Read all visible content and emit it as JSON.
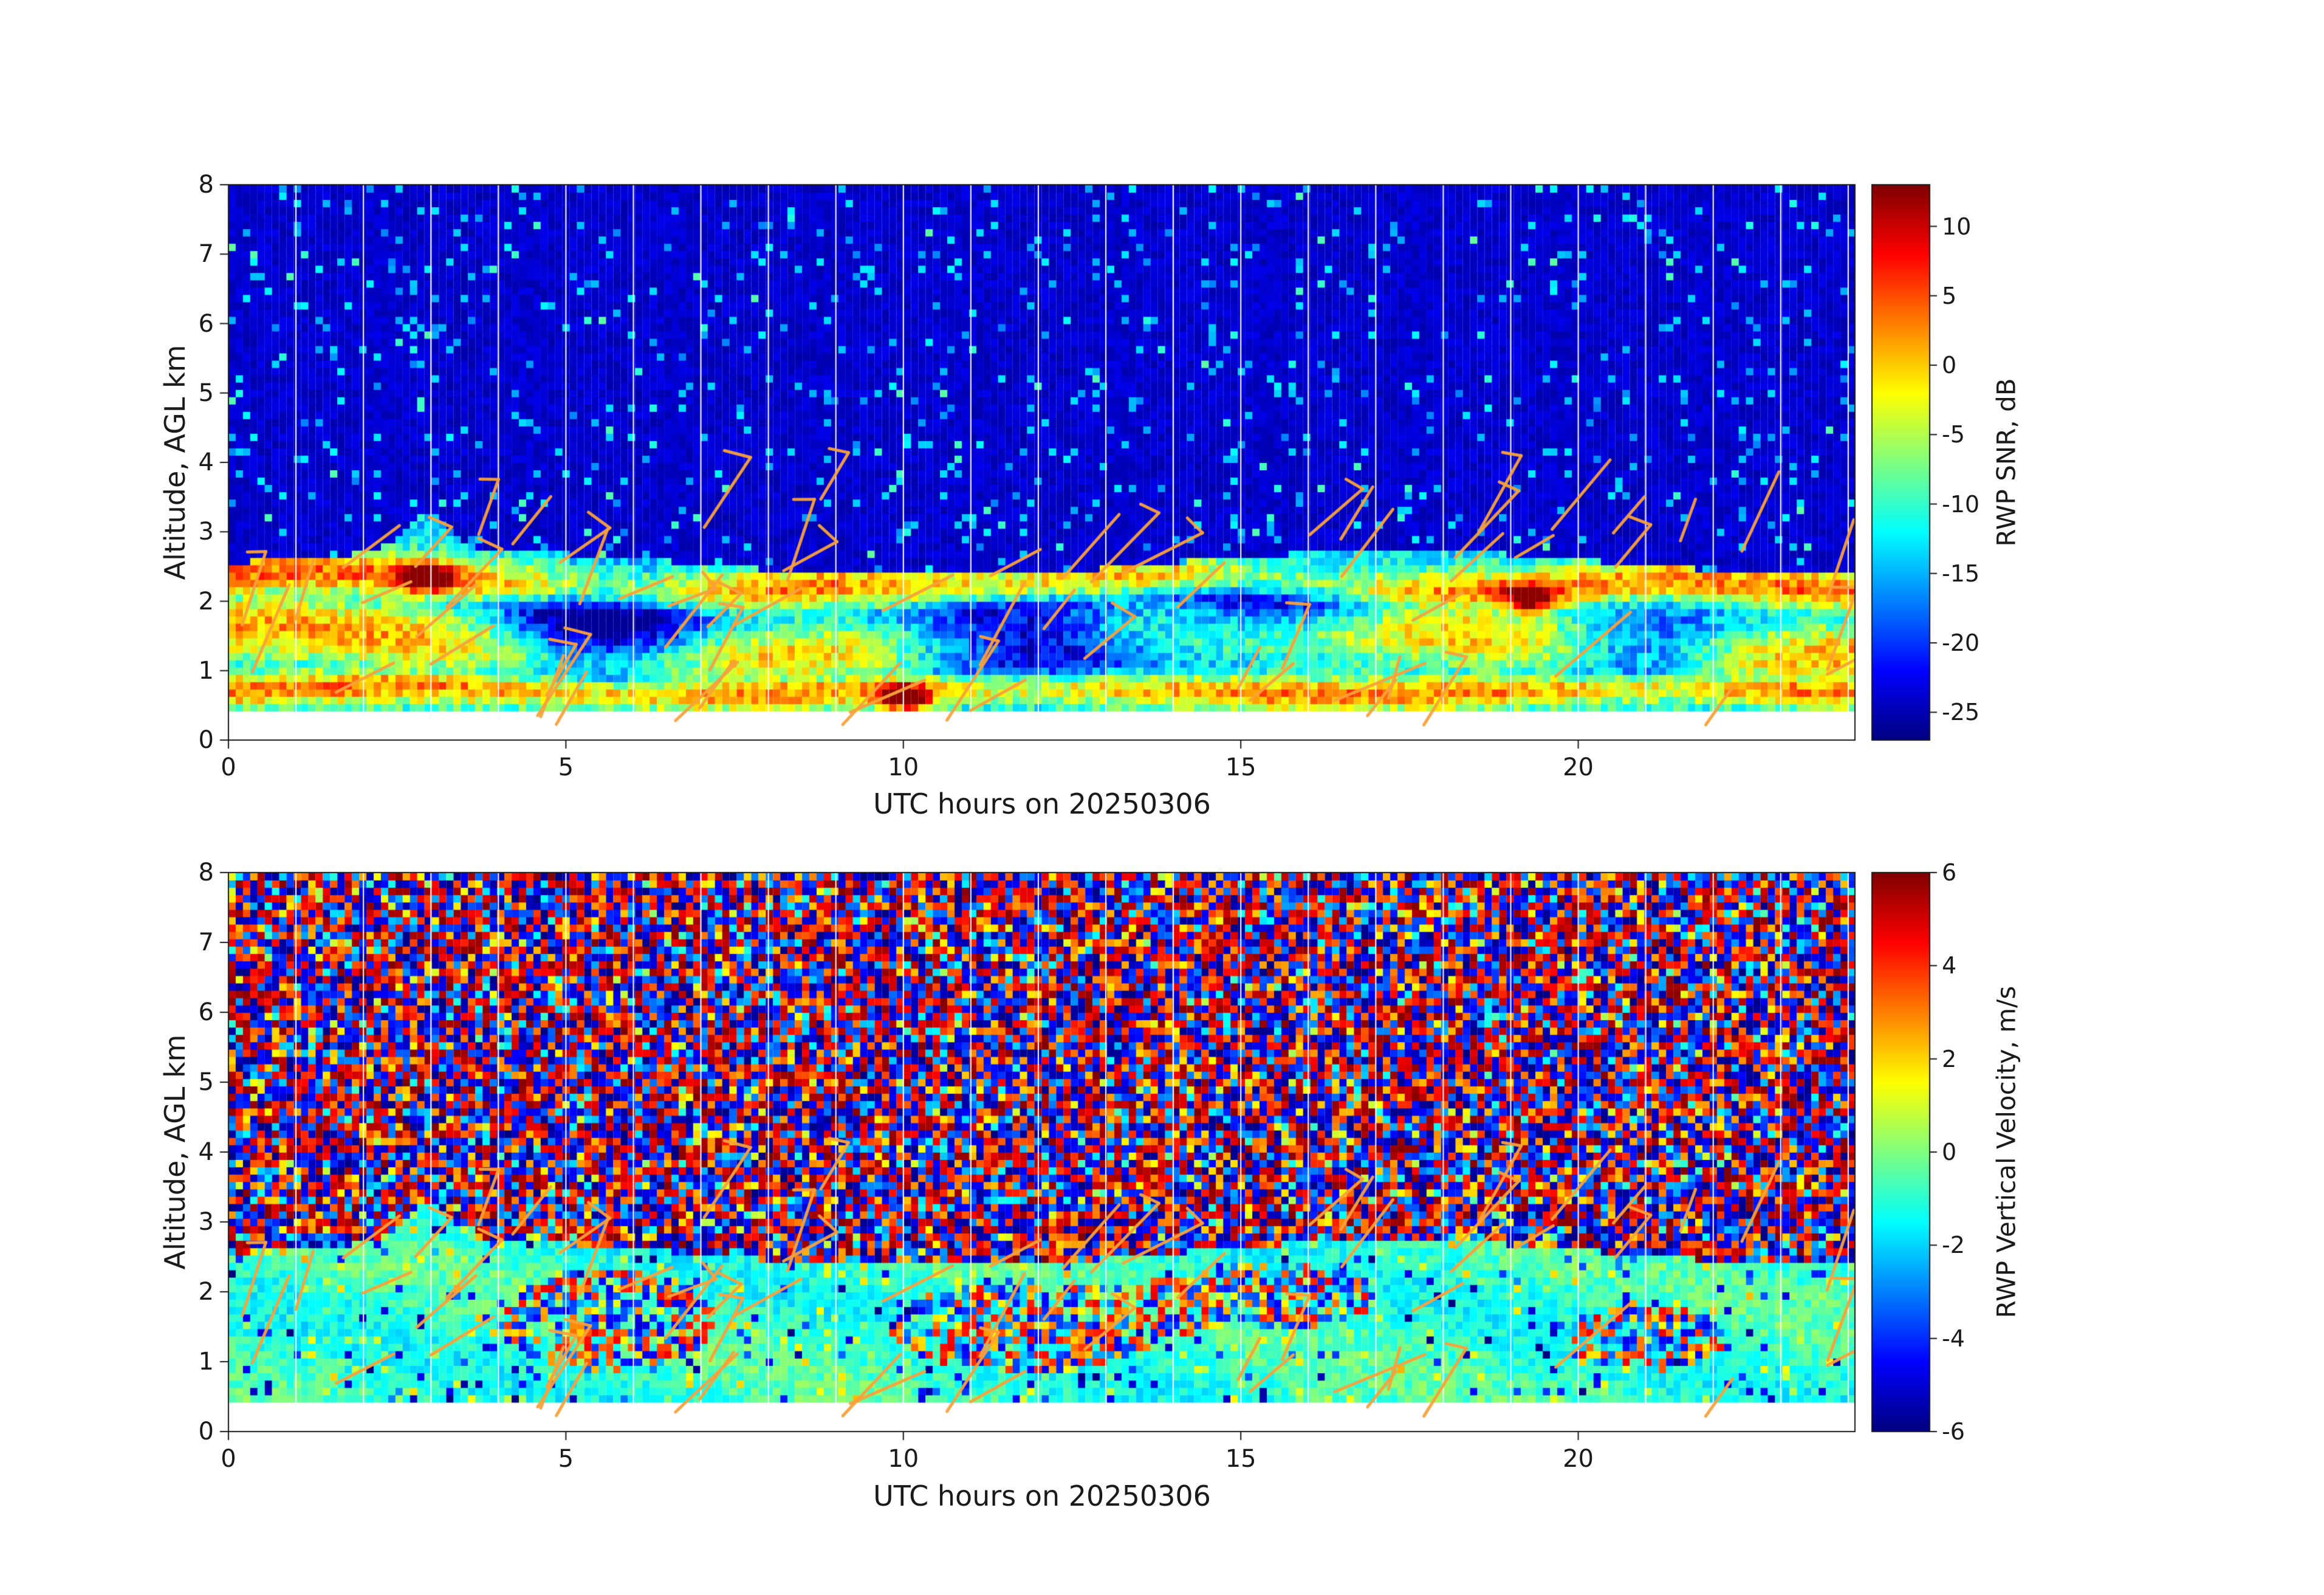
{
  "chart_data": [
    {
      "id": "rwp_snr",
      "type": "heatmap",
      "xlabel": "UTC hours on 20250306",
      "ylabel": "Altitude, AGL km",
      "x_range": [
        0,
        24.1
      ],
      "y_range": [
        0,
        8
      ],
      "x_ticks": [
        0,
        5,
        10,
        15,
        20
      ],
      "y_ticks": [
        0,
        1,
        2,
        3,
        4,
        5,
        6,
        7,
        8
      ],
      "colormap": "jet",
      "colorbar": {
        "label": "RWP SNR, dB",
        "range": [
          -27,
          13
        ],
        "ticks": [
          10,
          5,
          0,
          -5,
          -10,
          -15,
          -20,
          -25
        ]
      },
      "field": {
        "kind": "snr",
        "seed": 20250306,
        "nx": 224,
        "ny": 76,
        "background_db": -24,
        "min_altitude_km": 0.45,
        "layer_top_km": 2.55,
        "hotspots": [
          {
            "t": 10.05,
            "alt": 0.62,
            "db": 12
          },
          {
            "t": 2.95,
            "alt": 2.35,
            "db": 11
          },
          {
            "t": 19.3,
            "alt": 2.05,
            "db": 8
          }
        ]
      },
      "gridlines": {
        "color": "#ffffff",
        "every_hours": 1
      },
      "wind_barbs": {
        "color": "#f9a13b",
        "seed": 911,
        "count": 68,
        "max_altitude_km": 3.6
      }
    },
    {
      "id": "rwp_vertical_velocity",
      "type": "heatmap",
      "xlabel": "UTC hours on 20250306",
      "ylabel": "Altitude, AGL km",
      "x_range": [
        0,
        24.1
      ],
      "y_range": [
        0,
        8
      ],
      "x_ticks": [
        0,
        5,
        10,
        15,
        20
      ],
      "y_ticks": [
        0,
        1,
        2,
        3,
        4,
        5,
        6,
        7,
        8
      ],
      "colormap": "jet",
      "colorbar": {
        "label": "RWP Vertical Velocity, m/s",
        "range": [
          -6,
          6
        ],
        "ticks": [
          6,
          4,
          2,
          0,
          -2,
          -4,
          -6
        ]
      },
      "field": {
        "kind": "velocity",
        "seed": 30625,
        "nx": 224,
        "ny": 76,
        "band_mean_ms": -0.9,
        "min_altitude_km": 0.45,
        "layer_top_km": 2.55,
        "hotspots": []
      },
      "gridlines": {
        "color": "#ffffff",
        "every_hours": 1
      },
      "wind_barbs": {
        "color": "#f9a13b",
        "seed": 911,
        "count": 68,
        "max_altitude_km": 3.6
      }
    }
  ]
}
